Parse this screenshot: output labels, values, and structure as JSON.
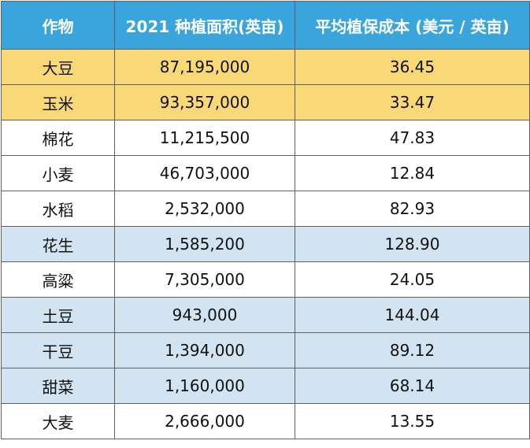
{
  "table": {
    "headers": [
      "作物",
      "2021 种植面积(英亩)",
      "平均植保成本 (美元 / 英亩)"
    ],
    "row_colors": {
      "yellow": "#f9d977",
      "blue": "#d2e3f1",
      "white": "#ffffff",
      "header": "#3aa4dc"
    },
    "rows": [
      {
        "crop": "大豆",
        "area": "87,195,000",
        "cost": "36.45",
        "highlight": "yellow"
      },
      {
        "crop": "玉米",
        "area": "93,357,000",
        "cost": "33.47",
        "highlight": "yellow"
      },
      {
        "crop": "棉花",
        "area": "11,215,500",
        "cost": "47.83",
        "highlight": "none"
      },
      {
        "crop": "小麦",
        "area": "46,703,000",
        "cost": "12.84",
        "highlight": "none"
      },
      {
        "crop": "水稻",
        "area": "2,532,000",
        "cost": "82.93",
        "highlight": "none"
      },
      {
        "crop": "花生",
        "area": "1,585,200",
        "cost": "128.90",
        "highlight": "blue"
      },
      {
        "crop": "高粱",
        "area": "7,305,000",
        "cost": "24.05",
        "highlight": "none"
      },
      {
        "crop": "土豆",
        "area": "943,000",
        "cost": "144.04",
        "highlight": "blue"
      },
      {
        "crop": "干豆",
        "area": "1,394,000",
        "cost": "89.12",
        "highlight": "blue"
      },
      {
        "crop": "甜菜",
        "area": "1,160,000",
        "cost": "68.14",
        "highlight": "blue"
      },
      {
        "crop": "大麦",
        "area": "2,666,000",
        "cost": "13.55",
        "highlight": "none"
      }
    ]
  }
}
